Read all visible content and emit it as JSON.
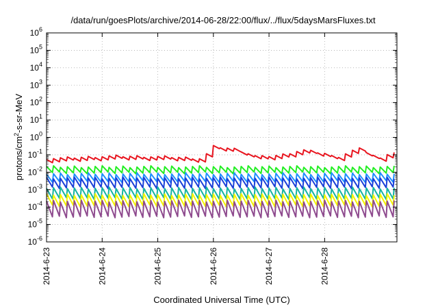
{
  "chart_data": {
    "type": "line",
    "title": "/data/run/goesPlots/archive/2014-06-28/22:00/flux/../flux/5daysMarsFluxes.txt",
    "xlabel": "Coordinated Universal Time (UTC)",
    "ylabel": {
      "prefix": "protons/cm",
      "sup": "2",
      "suffix": "-s-sr-MeV"
    },
    "y_scale": "log",
    "ylim_exponents": [
      -6,
      6
    ],
    "y_tick_exponents": [
      -6,
      -5,
      -4,
      -3,
      -2,
      -1,
      0,
      1,
      2,
      3,
      4,
      5,
      6
    ],
    "y_tick_base": "10",
    "x_ticks": [
      "2014-6-23",
      "2014-6-24",
      "2014-6-25",
      "2014-6-26",
      "2014-6-27",
      "2014-6-28"
    ],
    "x_range_days": [
      0,
      6.3
    ],
    "grid": true,
    "series": [
      {
        "color": "#e8141e",
        "log_base": -1.25,
        "log_amp": 0.35,
        "envelope": [
          [
            0,
            -1.3
          ],
          [
            1.2,
            -1.15
          ],
          [
            2.2,
            -1.2
          ],
          [
            2.8,
            -1.3
          ],
          [
            3.0,
            -0.6
          ],
          [
            3.4,
            -0.75
          ],
          [
            3.8,
            -1.2
          ],
          [
            4.2,
            -1.1
          ],
          [
            4.6,
            -0.8
          ],
          [
            5.0,
            -1.0
          ],
          [
            5.2,
            -1.25
          ],
          [
            5.6,
            -0.7
          ],
          [
            5.9,
            -1.15
          ],
          [
            6.0,
            -1.3
          ],
          [
            6.2,
            -0.85
          ],
          [
            6.3,
            -1.0
          ]
        ]
      },
      {
        "color": "#22ee22",
        "log_base": -1.85,
        "log_amp": 0.35,
        "envelope": []
      },
      {
        "color": "#1e90ff",
        "log_base": -2.3,
        "log_amp": 0.45,
        "envelope": []
      },
      {
        "color": "#1a3fd8",
        "log_base": -2.6,
        "log_amp": 0.55,
        "envelope": []
      },
      {
        "color": "#14b4a0",
        "log_base": -3.2,
        "log_amp": 0.6,
        "envelope": []
      },
      {
        "color": "#f5f500",
        "log_base": -3.6,
        "log_amp": 0.65,
        "envelope": []
      },
      {
        "color": "#8e4a8e",
        "log_base": -4.1,
        "log_amp": 0.9,
        "envelope": []
      }
    ]
  }
}
